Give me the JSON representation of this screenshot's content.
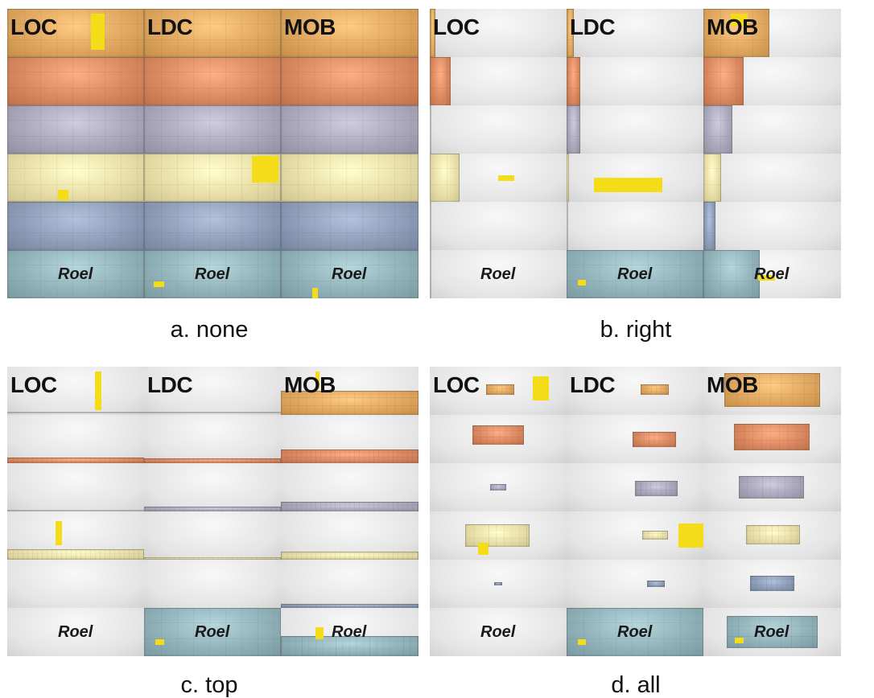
{
  "palette": [
    "#e0a860",
    "#dc8a62",
    "#ada9bd",
    "#e9dfa9",
    "#8f9fb9",
    "#93b3bb"
  ],
  "highlight_color": "#f4dc18",
  "columns": [
    "LOC",
    "LDC",
    "MOB"
  ],
  "row_label": "Roel",
  "panels": [
    {
      "caption": "a. none",
      "cells": [
        [
          [
            0,
            0,
            1,
            1
          ],
          [
            0,
            0,
            1,
            1
          ],
          [
            0,
            0,
            1,
            1
          ]
        ],
        [
          [
            0,
            0,
            1,
            1
          ],
          [
            0,
            0,
            1,
            1
          ],
          [
            0,
            0,
            1,
            1
          ]
        ],
        [
          [
            0,
            0,
            1,
            1
          ],
          [
            0,
            0,
            1,
            1
          ],
          [
            0,
            0,
            1,
            1
          ]
        ],
        [
          [
            0,
            0,
            1,
            1
          ],
          [
            0,
            0,
            1,
            1
          ],
          [
            0,
            0,
            1,
            1
          ]
        ],
        [
          [
            0,
            0,
            1,
            1
          ],
          [
            0,
            0,
            1,
            1
          ],
          [
            0,
            0,
            1,
            1
          ]
        ],
        [
          [
            0,
            0,
            1,
            1
          ],
          [
            0,
            0,
            1,
            1
          ],
          [
            0,
            0,
            1,
            1
          ]
        ]
      ]
    },
    {
      "caption": "b. right",
      "cells": [
        [
          [
            0,
            0,
            0.04,
            1
          ],
          [
            0,
            0,
            0.05,
            1
          ],
          [
            0,
            0,
            0.48,
            1
          ]
        ],
        [
          [
            0,
            0,
            0.15,
            1
          ],
          [
            0,
            0,
            0.1,
            1
          ],
          [
            0,
            0,
            0.29,
            1
          ]
        ],
        [
          [
            0,
            0,
            0.01,
            1
          ],
          [
            0,
            0,
            0.1,
            1
          ],
          [
            0,
            0,
            0.21,
            1
          ]
        ],
        [
          [
            0,
            0,
            0.22,
            1
          ],
          [
            0,
            0,
            0.02,
            1
          ],
          [
            0,
            0,
            0.13,
            1
          ]
        ],
        [
          [
            0,
            0,
            0.005,
            1
          ],
          [
            0,
            0,
            0.01,
            1
          ],
          [
            0,
            0,
            0.09,
            1
          ]
        ],
        [
          [
            0,
            0,
            0.005,
            1
          ],
          [
            0,
            0,
            1,
            1
          ],
          [
            0,
            0,
            0.41,
            1
          ]
        ]
      ]
    },
    {
      "caption": "c. top",
      "cells": [
        [
          [
            0,
            0.93,
            1,
            0.04
          ],
          [
            0,
            0.93,
            1,
            0.04
          ],
          [
            0,
            0.5,
            1,
            0.5
          ]
        ],
        [
          [
            0,
            0.88,
            1,
            0.12
          ],
          [
            0,
            0.9,
            1,
            0.1
          ],
          [
            0,
            0.72,
            1,
            0.28
          ]
        ],
        [
          [
            0,
            0.96,
            1,
            0.04
          ],
          [
            0,
            0.9,
            1,
            0.1
          ],
          [
            0,
            0.8,
            1,
            0.2
          ]
        ],
        [
          [
            0,
            0.78,
            1,
            0.22
          ],
          [
            0,
            0.95,
            1,
            0.05
          ],
          [
            0,
            0.83,
            1,
            0.17
          ]
        ],
        [
          [
            0,
            1,
            1,
            0.0
          ],
          [
            0,
            1,
            1,
            0.0
          ],
          [
            0,
            0.92,
            1,
            0.08
          ]
        ],
        [
          [
            0,
            1,
            1,
            0.0
          ],
          [
            0,
            0,
            1,
            1
          ],
          [
            0,
            0.58,
            1,
            0.42
          ]
        ]
      ]
    },
    {
      "caption": "d. all",
      "cells": [
        [
          [
            0.41,
            0.36,
            0.21,
            0.22
          ],
          [
            0.54,
            0.36,
            0.21,
            0.22
          ],
          [
            0.15,
            0.13,
            0.7,
            0.7
          ]
        ],
        [
          [
            0.31,
            0.22,
            0.38,
            0.4
          ],
          [
            0.48,
            0.35,
            0.32,
            0.32
          ],
          [
            0.22,
            0.18,
            0.55,
            0.55
          ]
        ],
        [
          [
            0.44,
            0.44,
            0.12,
            0.12
          ],
          [
            0.5,
            0.37,
            0.31,
            0.31
          ],
          [
            0.26,
            0.27,
            0.47,
            0.47
          ]
        ],
        [
          [
            0.26,
            0.26,
            0.47,
            0.47
          ],
          [
            0.55,
            0.4,
            0.19,
            0.19
          ],
          [
            0.31,
            0.29,
            0.39,
            0.39
          ]
        ],
        [
          [
            0.47,
            0.47,
            0.06,
            0.06
          ],
          [
            0.59,
            0.44,
            0.13,
            0.13
          ],
          [
            0.34,
            0.33,
            0.32,
            0.32
          ]
        ],
        [
          [
            0,
            1,
            0,
            0
          ],
          [
            0,
            0,
            1,
            1
          ],
          [
            0.17,
            0.17,
            0.66,
            0.66
          ]
        ]
      ]
    }
  ]
}
